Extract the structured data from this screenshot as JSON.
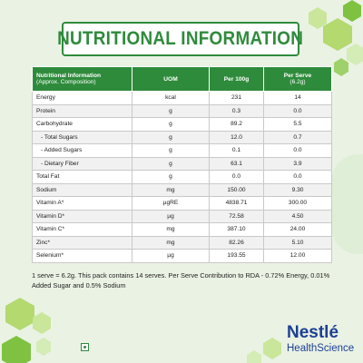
{
  "header": {
    "title": "NUTRITIONAL INFORMATION"
  },
  "table": {
    "columns": [
      {
        "main": "Nutritional Information",
        "sub": "(Approx. Composition)"
      },
      {
        "main": "UOM"
      },
      {
        "main": "Per 100g"
      },
      {
        "main": "Per Serve",
        "sub": "(6.2g)"
      }
    ],
    "rows": [
      [
        "Energy",
        "kcal",
        "231",
        "14"
      ],
      [
        "Protein",
        "g",
        "0.3",
        "0.0"
      ],
      [
        "Carbohydrate",
        "g",
        "89.2",
        "5.5"
      ],
      [
        "- Total Sugars",
        "g",
        "12.0",
        "0.7"
      ],
      [
        "- Added Sugars",
        "g",
        "0.1",
        "0.0"
      ],
      [
        "- Dietary Fiber",
        "g",
        "63.1",
        "3.9"
      ],
      [
        "Total Fat",
        "g",
        "0.0",
        "0.0"
      ],
      [
        "Sodium",
        "mg",
        "150.00",
        "9.30"
      ],
      [
        "Vitamin A*",
        "µgRE",
        "4838.71",
        "300.00"
      ],
      [
        "Vitamin D*",
        "µg",
        "72.58",
        "4.50"
      ],
      [
        "Vitamin C*",
        "mg",
        "387.10",
        "24.00"
      ],
      [
        "Zinc*",
        "mg",
        "82.26",
        "5.10"
      ],
      [
        "Selenium*",
        "µg",
        "193.55",
        "12.00"
      ]
    ]
  },
  "footnote": "1 serve = 6.2g. This pack contains 14 serves. Per Serve Contribution to RDA - 0.72% Energy, 0.01% Added Sugar and 0.5% Sodium",
  "logo": {
    "brand": "Nestlé",
    "sub": "HealthScience"
  }
}
